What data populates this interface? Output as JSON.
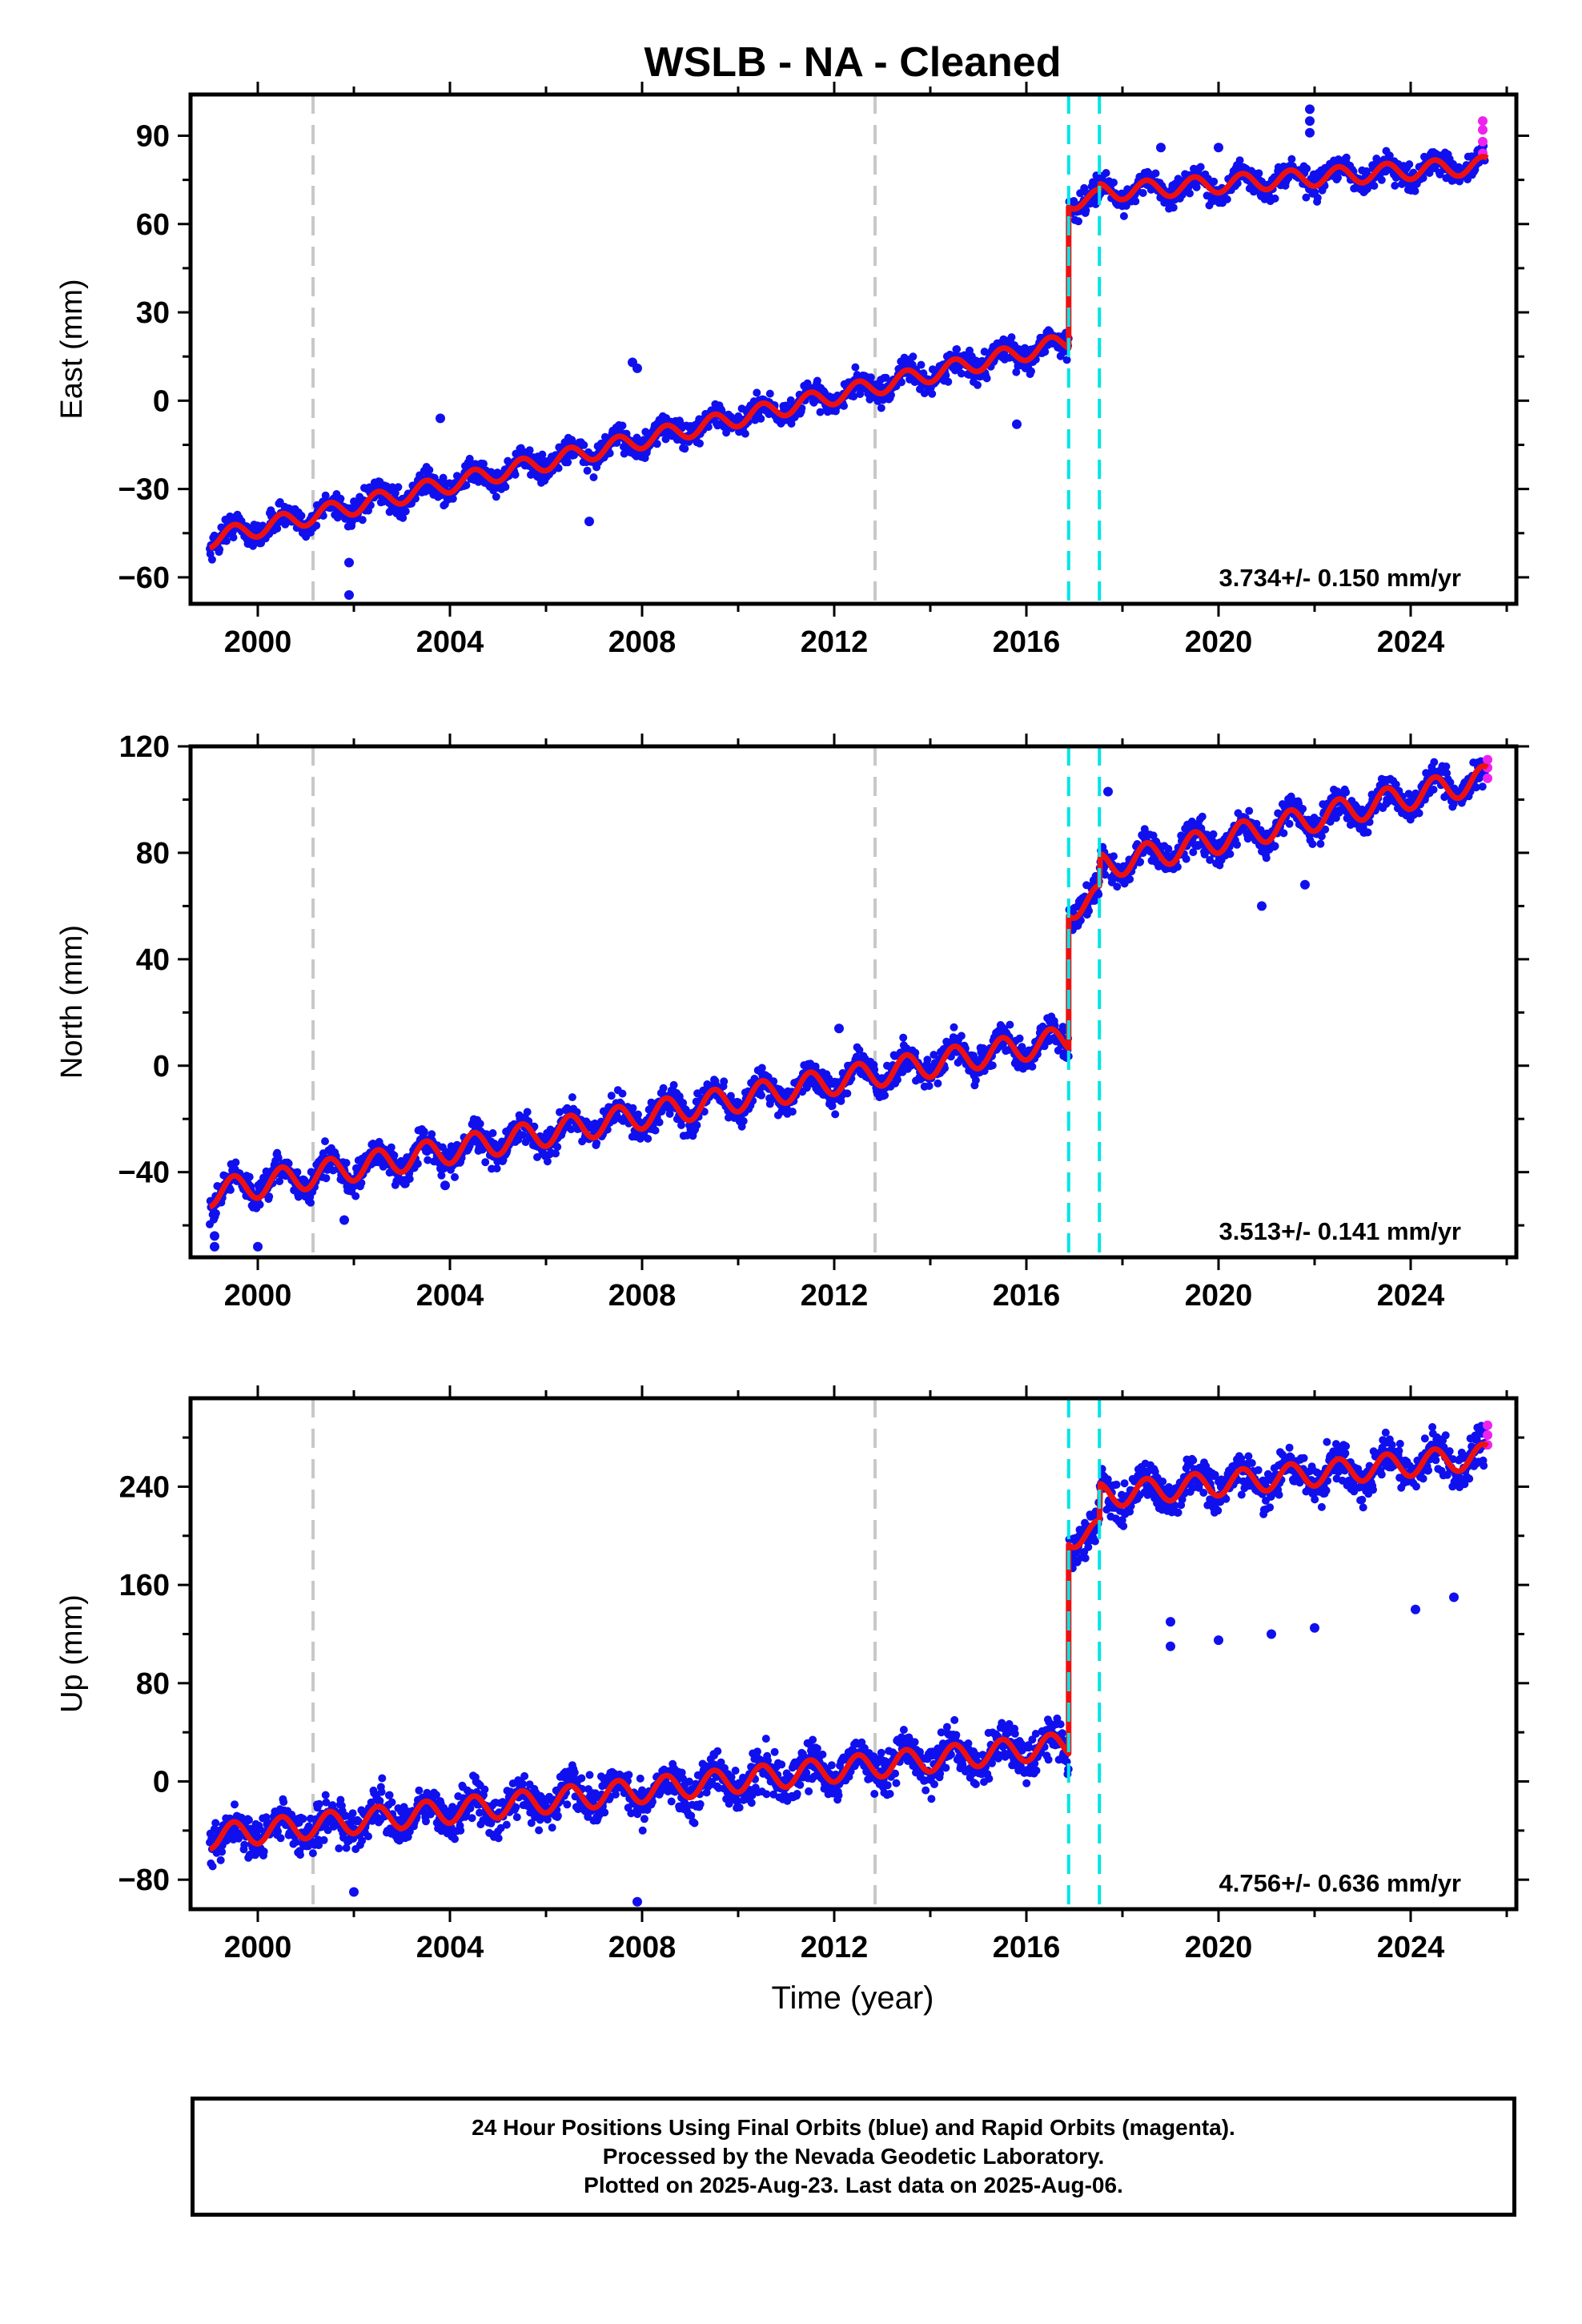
{
  "chart_data": {
    "type": "scatter",
    "title": "WSLB  - NA - Cleaned",
    "xlabel": "Time (year)",
    "xlim": [
      1998.6,
      2026.2
    ],
    "x_ticks": [
      "2000",
      "2004",
      "2008",
      "2012",
      "2016",
      "2020",
      "2024"
    ],
    "x_tick_values": [
      2000,
      2004,
      2008,
      2012,
      2016,
      2020,
      2024
    ],
    "gray_dashed_lines_year": [
      2001.15,
      2012.85
    ],
    "cyan_dashed_lines_year": [
      2016.88,
      2017.52
    ],
    "colors": {
      "final_orbits": "#1010ee",
      "rapid_orbits": "#ee22ee",
      "model_fit": "#ee1010",
      "equipment_lines": "#c8c8c8",
      "event_lines": "#00e5e5"
    },
    "panels": [
      {
        "name": "east",
        "ylabel": "East (mm)",
        "ylim": [
          -69,
          104
        ],
        "y_ticks": [
          "90",
          "60",
          "30",
          "0",
          "−30",
          "−60"
        ],
        "y_tick_values": [
          90,
          60,
          30,
          0,
          -30,
          -60
        ],
        "rate_label": "3.734+/- 0.150 mm/yr",
        "model": {
          "start_year": 1999.0,
          "start_value": -47,
          "pre_step_end_value": 20,
          "step_year": 2016.88,
          "step_value": 48,
          "second_step_year": 2017.52,
          "second_step_value": 2,
          "end_year": 2025.6,
          "end_value": 80,
          "seasonal_amplitude": 3,
          "noise": 3
        },
        "outliers": [
          [
            2001.9,
            -66
          ],
          [
            2001.9,
            -55
          ],
          [
            2003.8,
            -6
          ],
          [
            2006.9,
            -41
          ],
          [
            2007.8,
            13
          ],
          [
            2007.9,
            11
          ],
          [
            2015.8,
            -8
          ],
          [
            2018.8,
            86
          ],
          [
            2020.0,
            86
          ],
          [
            2021.9,
            99
          ],
          [
            2021.9,
            95
          ],
          [
            2021.9,
            91
          ]
        ],
        "rapid_points": [
          [
            2025.5,
            95
          ],
          [
            2025.5,
            92
          ],
          [
            2025.5,
            88
          ],
          [
            2025.5,
            84
          ]
        ]
      },
      {
        "name": "north",
        "ylabel": "North (mm)",
        "ylim": [
          -72,
          120
        ],
        "y_ticks": [
          "120",
          "80",
          "40",
          "0",
          "−40"
        ],
        "y_tick_values": [
          120,
          80,
          40,
          0,
          -40
        ],
        "rate_label": "3.513+/- 0.141 mm/yr",
        "model": {
          "start_year": 1999.0,
          "start_value": -48,
          "pre_step_end_value": 10,
          "step_year": 2016.88,
          "step_value": 50,
          "second_step_year": 2017.52,
          "second_step_value": 12,
          "end_year": 2025.6,
          "end_value": 108,
          "seasonal_amplitude": 5,
          "noise": 4
        },
        "outliers": [
          [
            1999.1,
            -68
          ],
          [
            1999.1,
            -64
          ],
          [
            2000.0,
            -68
          ],
          [
            2001.8,
            -58
          ],
          [
            2003.9,
            -45
          ],
          [
            2012.1,
            14
          ],
          [
            2017.7,
            103
          ],
          [
            2020.9,
            60
          ],
          [
            2021.8,
            68
          ]
        ],
        "rapid_points": [
          [
            2025.6,
            115
          ],
          [
            2025.6,
            112
          ],
          [
            2025.6,
            108
          ]
        ]
      },
      {
        "name": "up",
        "ylabel": "Up (mm)",
        "ylim": [
          -104,
          312
        ],
        "y_ticks": [
          "240",
          "160",
          "80",
          "0",
          "−80"
        ],
        "y_tick_values": [
          240,
          160,
          80,
          0,
          -80
        ],
        "rate_label": "4.756+/- 0.636 mm/yr",
        "model": {
          "start_year": 1999.0,
          "start_value": -45,
          "pre_step_end_value": 30,
          "step_year": 2016.88,
          "step_value": 170,
          "second_step_year": 2017.52,
          "second_step_value": 30,
          "end_year": 2025.6,
          "end_value": 265,
          "seasonal_amplitude": 10,
          "noise": 12
        },
        "outliers": [
          [
            2002.0,
            -90
          ],
          [
            2007.9,
            -98
          ],
          [
            2019.0,
            110
          ],
          [
            2019.0,
            130
          ],
          [
            2020.0,
            115
          ],
          [
            2021.1,
            120
          ],
          [
            2022.0,
            125
          ],
          [
            2024.1,
            140
          ],
          [
            2024.9,
            150
          ]
        ],
        "rapid_points": [
          [
            2025.6,
            290
          ],
          [
            2025.6,
            282
          ],
          [
            2025.6,
            274
          ]
        ]
      }
    ]
  },
  "footer": {
    "line1": "24 Hour Positions Using Final Orbits (blue) and Rapid Orbits (magenta).",
    "line2": "Processed by the Nevada Geodetic Laboratory.",
    "line3": "Plotted on 2025-Aug-23. Last data on 2025-Aug-06."
  }
}
